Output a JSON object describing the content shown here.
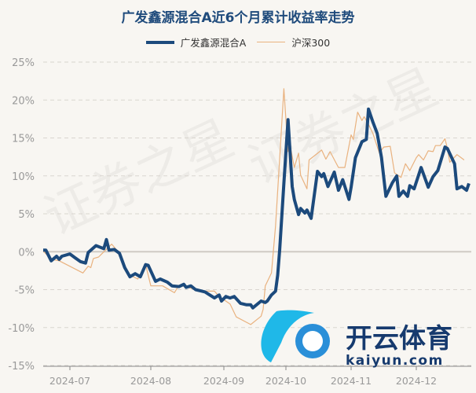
{
  "watermark": {
    "text": "证券之星",
    "logo_cn": "开云体育",
    "logo_en": "kaiyun.com"
  },
  "colors": {
    "fund": "#1c4a7c",
    "index": "#e9b27f",
    "title": "#1f4b7c",
    "background": "#f8f6f2"
  },
  "chart_data": {
    "type": "line",
    "title": "广发鑫源混合A近6个月累计收益率走势",
    "legend_position": "top",
    "grid": true,
    "ylim": [
      -15,
      25
    ],
    "yticks": [
      25,
      20,
      15,
      10,
      5,
      0,
      -5,
      -10,
      -15
    ],
    "ytick_labels": [
      "25%",
      "20%",
      "15%",
      "10%",
      "5%",
      "0%",
      "-5%",
      "-10%",
      "-15%"
    ],
    "xticks": [
      "2024-07-01",
      "2024-08-01",
      "2024-09-01",
      "2024-10-01",
      "2024-11-01",
      "2024-12-01"
    ],
    "xtick_labels": [
      "2024-07",
      "2024-08",
      "2024-09",
      "2024-10",
      "2024-11",
      "2024-12"
    ],
    "series": [
      {
        "name": "广发鑫源混合A",
        "points": [
          [
            "2024-06-21",
            0.2
          ],
          [
            "2024-06-22",
            0.2
          ],
          [
            "2024-06-24",
            -1.2
          ],
          [
            "2024-06-26",
            -0.6
          ],
          [
            "2024-06-27",
            -1.0
          ],
          [
            "2024-06-28",
            -0.6
          ],
          [
            "2024-07-01",
            -0.3
          ],
          [
            "2024-07-03",
            -0.8
          ],
          [
            "2024-07-05",
            -1.3
          ],
          [
            "2024-07-07",
            -1.5
          ],
          [
            "2024-07-08",
            -0.1
          ],
          [
            "2024-07-11",
            0.8
          ],
          [
            "2024-07-14",
            0.4
          ],
          [
            "2024-07-15",
            1.6
          ],
          [
            "2024-07-16",
            0.2
          ],
          [
            "2024-07-18",
            0.3
          ],
          [
            "2024-07-20",
            -0.2
          ],
          [
            "2024-07-22",
            -2.1
          ],
          [
            "2024-07-24",
            -3.3
          ],
          [
            "2024-07-26",
            -2.9
          ],
          [
            "2024-07-28",
            -3.3
          ],
          [
            "2024-07-30",
            -1.7
          ],
          [
            "2024-07-31",
            -1.8
          ],
          [
            "2024-08-03",
            -3.9
          ],
          [
            "2024-08-05",
            -3.6
          ],
          [
            "2024-08-08",
            -4.0
          ],
          [
            "2024-08-10",
            -4.5
          ],
          [
            "2024-08-13",
            -4.6
          ],
          [
            "2024-08-15",
            -4.3
          ],
          [
            "2024-08-16",
            -4.7
          ],
          [
            "2024-08-18",
            -4.5
          ],
          [
            "2024-08-20",
            -5.0
          ],
          [
            "2024-08-24",
            -5.3
          ],
          [
            "2024-08-28",
            -6.1
          ],
          [
            "2024-08-30",
            -5.7
          ],
          [
            "2024-08-31",
            -6.5
          ],
          [
            "2024-09-02",
            -5.9
          ],
          [
            "2024-09-04",
            -6.1
          ],
          [
            "2024-09-06",
            -5.9
          ],
          [
            "2024-09-09",
            -6.8
          ],
          [
            "2024-09-12",
            -7.0
          ],
          [
            "2024-09-14",
            -7.0
          ],
          [
            "2024-09-15",
            -7.4
          ],
          [
            "2024-09-19",
            -6.5
          ],
          [
            "2024-09-21",
            -6.7
          ],
          [
            "2024-09-22",
            -6.5
          ],
          [
            "2024-09-24",
            -5.7
          ],
          [
            "2024-09-26",
            -5.2
          ],
          [
            "2024-09-27",
            -3.1
          ],
          [
            "2024-09-28",
            0.3
          ],
          [
            "2024-09-30",
            9.0
          ],
          [
            "2024-10-02",
            17.4
          ],
          [
            "2024-10-04",
            8.6
          ],
          [
            "2024-10-05",
            6.9
          ],
          [
            "2024-10-07",
            4.9
          ],
          [
            "2024-10-08",
            5.7
          ],
          [
            "2024-10-10",
            5.1
          ],
          [
            "2024-10-11",
            5.5
          ],
          [
            "2024-10-13",
            4.4
          ],
          [
            "2024-10-16",
            10.6
          ],
          [
            "2024-10-18",
            9.9
          ],
          [
            "2024-10-19",
            10.3
          ],
          [
            "2024-10-21",
            8.6
          ],
          [
            "2024-10-24",
            10.5
          ],
          [
            "2024-10-26",
            8.1
          ],
          [
            "2024-10-28",
            9.5
          ],
          [
            "2024-10-31",
            6.9
          ],
          [
            "2024-11-01",
            8.5
          ],
          [
            "2024-11-03",
            12.4
          ],
          [
            "2024-11-06",
            14.5
          ],
          [
            "2024-11-08",
            14.8
          ],
          [
            "2024-11-09",
            18.8
          ],
          [
            "2024-11-11",
            17.1
          ],
          [
            "2024-11-13",
            15.6
          ],
          [
            "2024-11-15",
            12.4
          ],
          [
            "2024-11-17",
            7.3
          ],
          [
            "2024-11-20",
            9.1
          ],
          [
            "2024-11-22",
            10.0
          ],
          [
            "2024-11-23",
            7.3
          ],
          [
            "2024-11-25",
            8.0
          ],
          [
            "2024-11-27",
            7.3
          ],
          [
            "2024-11-28",
            8.7
          ],
          [
            "2024-11-30",
            8.3
          ],
          [
            "2024-12-03",
            11.1
          ],
          [
            "2024-12-06",
            8.5
          ],
          [
            "2024-12-08",
            9.9
          ],
          [
            "2024-12-10",
            10.7
          ],
          [
            "2024-12-13",
            13.8
          ],
          [
            "2024-12-14",
            13.6
          ],
          [
            "2024-12-17",
            11.6
          ],
          [
            "2024-12-18",
            8.3
          ],
          [
            "2024-12-20",
            8.6
          ],
          [
            "2024-12-22",
            8.1
          ],
          [
            "2024-12-23",
            9.0
          ]
        ]
      },
      {
        "name": "沪深300",
        "points": [
          [
            "2024-06-21",
            0.1
          ],
          [
            "2024-06-24",
            -1.0
          ],
          [
            "2024-06-27",
            -1.2
          ],
          [
            "2024-07-06",
            -2.8
          ],
          [
            "2024-07-08",
            -1.9
          ],
          [
            "2024-07-09",
            -2.1
          ],
          [
            "2024-07-10",
            -0.9
          ],
          [
            "2024-07-12",
            -0.7
          ],
          [
            "2024-07-17",
            1.0
          ],
          [
            "2024-07-19",
            0.2
          ],
          [
            "2024-07-21",
            -1.4
          ],
          [
            "2024-07-23",
            -2.9
          ],
          [
            "2024-07-27",
            -3.6
          ],
          [
            "2024-07-30",
            -1.7
          ],
          [
            "2024-08-01",
            -4.5
          ],
          [
            "2024-08-06",
            -4.5
          ],
          [
            "2024-08-11",
            -5.4
          ],
          [
            "2024-08-13",
            -4.4
          ],
          [
            "2024-08-19",
            -4.9
          ],
          [
            "2024-08-23",
            -5.2
          ],
          [
            "2024-08-28",
            -5.2
          ],
          [
            "2024-08-30",
            -5.9
          ],
          [
            "2024-09-04",
            -6.9
          ],
          [
            "2024-09-07",
            -8.6
          ],
          [
            "2024-09-14",
            -9.6
          ],
          [
            "2024-09-19",
            -8.5
          ],
          [
            "2024-09-20",
            -7.6
          ],
          [
            "2024-09-21",
            -4.5
          ],
          [
            "2024-09-24",
            -2.8
          ],
          [
            "2024-09-26",
            3.4
          ],
          [
            "2024-09-28",
            12.4
          ],
          [
            "2024-09-30",
            21.5
          ],
          [
            "2024-10-02",
            13.2
          ],
          [
            "2024-10-03",
            14.0
          ],
          [
            "2024-10-05",
            11.1
          ],
          [
            "2024-10-07",
            13.0
          ],
          [
            "2024-10-08",
            10.1
          ],
          [
            "2024-10-11",
            8.3
          ],
          [
            "2024-10-12",
            12.1
          ],
          [
            "2024-10-18",
            13.4
          ],
          [
            "2024-10-20",
            12.2
          ],
          [
            "2024-10-22",
            13.2
          ],
          [
            "2024-10-26",
            11.1
          ],
          [
            "2024-10-29",
            11.1
          ],
          [
            "2024-11-01",
            15.4
          ],
          [
            "2024-11-02",
            14.8
          ],
          [
            "2024-11-04",
            18.4
          ],
          [
            "2024-11-06",
            17.3
          ],
          [
            "2024-11-07",
            17.8
          ],
          [
            "2024-11-09",
            16.8
          ],
          [
            "2024-11-11",
            15.6
          ],
          [
            "2024-11-14",
            13.0
          ],
          [
            "2024-11-16",
            13.8
          ],
          [
            "2024-11-19",
            13.9
          ],
          [
            "2024-11-21",
            10.4
          ],
          [
            "2024-11-24",
            9.8
          ],
          [
            "2024-11-26",
            11.6
          ],
          [
            "2024-11-28",
            10.7
          ],
          [
            "2024-12-01",
            12.4
          ],
          [
            "2024-12-02",
            12.8
          ],
          [
            "2024-12-04",
            12.1
          ],
          [
            "2024-12-06",
            13.3
          ],
          [
            "2024-12-08",
            13.2
          ],
          [
            "2024-12-09",
            14.0
          ],
          [
            "2024-12-11",
            14.0
          ],
          [
            "2024-12-13",
            14.9
          ],
          [
            "2024-12-14",
            13.6
          ],
          [
            "2024-12-15",
            11.8
          ],
          [
            "2024-12-18",
            12.8
          ],
          [
            "2024-12-21",
            12.1
          ]
        ]
      }
    ]
  }
}
